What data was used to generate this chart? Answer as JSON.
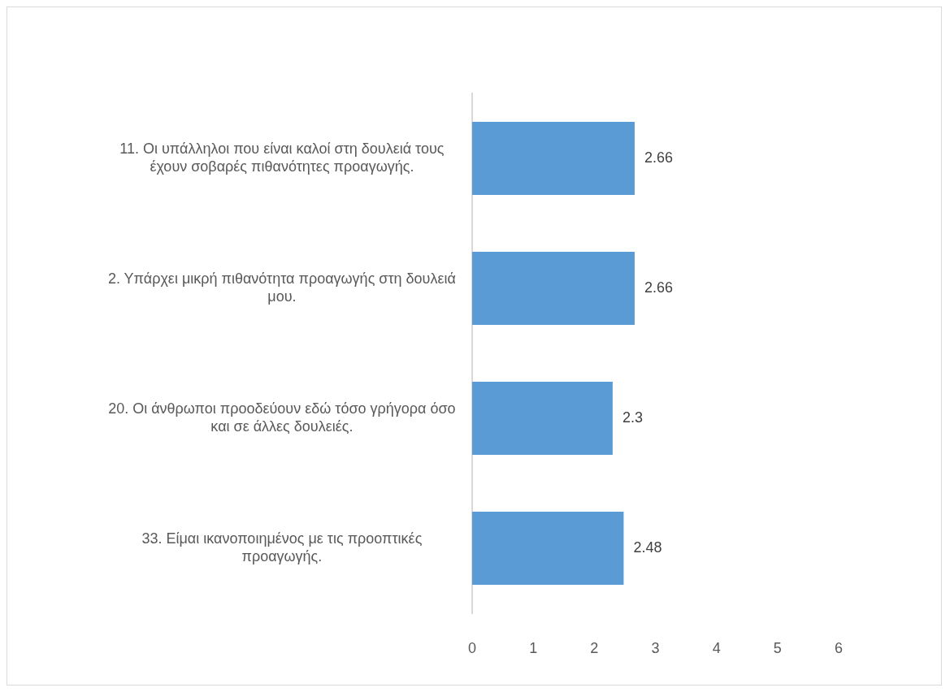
{
  "chart_data": {
    "type": "bar",
    "orientation": "horizontal",
    "categories": [
      "11. Οι υπάλληλοι που είναι καλοί στη δουλειά τους έχουν σοβαρές πιθανότητες προαγωγής.",
      "2. Υπάρχει μικρή πιθανότητα προαγωγής στη δουλειά μου.",
      "20. Οι άνθρωποι προοδεύουν εδώ τόσο γρήγορα όσο και σε άλλες δουλειές.",
      "33. Είμαι ικανοποιημένος με τις προοπτικές προαγωγής."
    ],
    "values": [
      2.66,
      2.66,
      2.3,
      2.48
    ],
    "color": "#5b9bd5",
    "xlim": [
      0,
      6
    ],
    "xticks": [
      0,
      1,
      2,
      3,
      4,
      5,
      6
    ],
    "data_labels": true
  }
}
